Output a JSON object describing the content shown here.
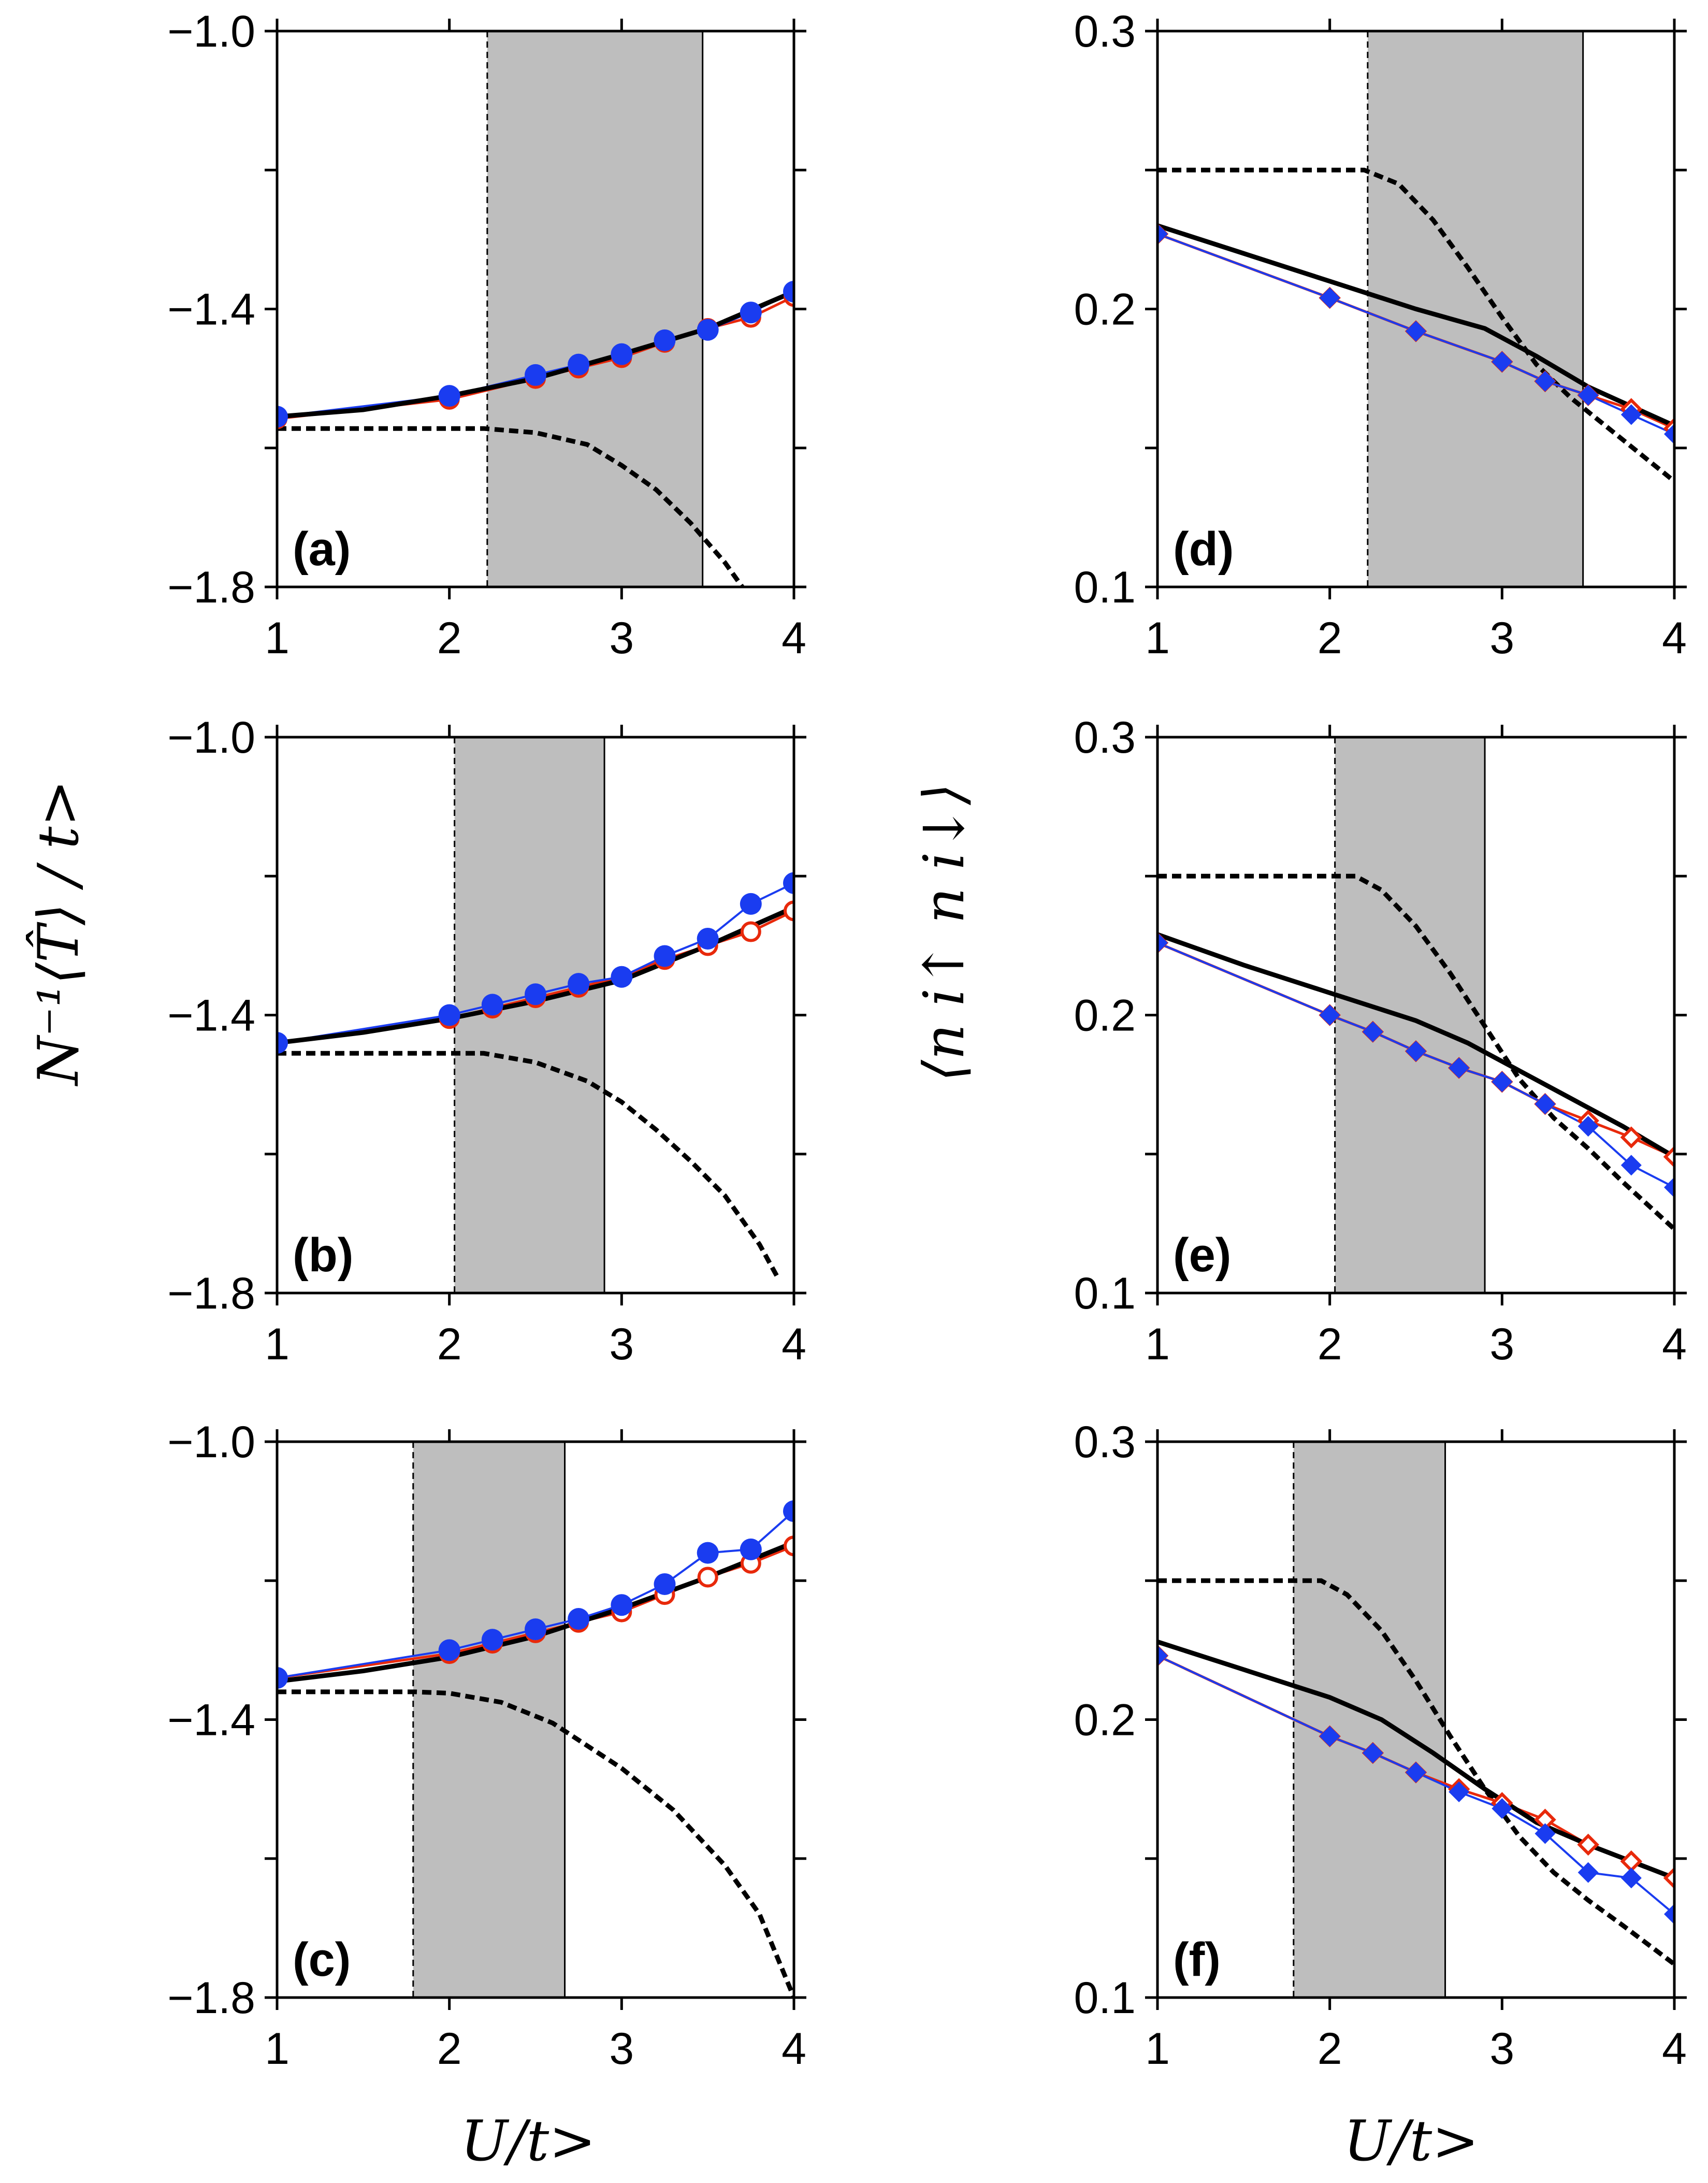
{
  "chart_data": {
    "type": "line",
    "figure": {
      "ylabel_left": "N⁻¹⟨T̂⟩ / t>",
      "ylabel_right": "⟨n i↑ n i↓⟩",
      "xlabel": "U/t>"
    },
    "colors": {
      "black_line": "#000000",
      "blue": "#1a3cf0",
      "red": "#e8290b",
      "shade": "#bebebe"
    },
    "panels": [
      {
        "id": "a",
        "label": "(a)",
        "xlim": [
          1,
          4
        ],
        "ylim": [
          -1.8,
          -1.0
        ],
        "xticks": [
          "1",
          "2",
          "3",
          "4"
        ],
        "yticks": [
          {
            "v": -1.0,
            "t": "−1.0"
          },
          {
            "v": -1.4,
            "t": "−1.4"
          },
          {
            "v": -1.8,
            "t": "−1.8"
          }
        ],
        "ytick_minor": [
          -1.2,
          -1.6
        ],
        "shade": [
          2.22,
          3.47
        ],
        "marker": "circle",
        "series": [
          {
            "name": "solid",
            "x": [
              1,
              1.5,
              2,
              2.5,
              3,
              3.5,
              4
            ],
            "y": [
              -1.555,
              -1.545,
              -1.525,
              -1.5,
              -1.465,
              -1.428,
              -1.375
            ]
          },
          {
            "name": "dashed",
            "x": [
              1,
              1.5,
              2,
              2.2,
              2.5,
              2.8,
              3,
              3.2,
              3.4,
              3.6,
              3.7
            ],
            "y": [
              -1.572,
              -1.572,
              -1.572,
              -1.572,
              -1.578,
              -1.595,
              -1.625,
              -1.66,
              -1.708,
              -1.765,
              -1.8
            ]
          },
          {
            "name": "red",
            "x": [
              1,
              2,
              2.5,
              2.75,
              3,
              3.25,
              3.5,
              3.75,
              4
            ],
            "y": [
              -1.558,
              -1.53,
              -1.5,
              -1.485,
              -1.47,
              -1.448,
              -1.428,
              -1.412,
              -1.382
            ]
          },
          {
            "name": "blue",
            "x": [
              1,
              2,
              2.5,
              2.75,
              3,
              3.25,
              3.5,
              3.75,
              4
            ],
            "y": [
              -1.555,
              -1.525,
              -1.495,
              -1.48,
              -1.465,
              -1.445,
              -1.43,
              -1.405,
              -1.375
            ]
          }
        ]
      },
      {
        "id": "b",
        "label": "(b)",
        "xlim": [
          1,
          4
        ],
        "ylim": [
          -1.8,
          -1.0
        ],
        "xticks": [
          "1",
          "2",
          "3",
          "4"
        ],
        "yticks": [
          {
            "v": -1.0,
            "t": "−1.0"
          },
          {
            "v": -1.4,
            "t": "−1.4"
          },
          {
            "v": -1.8,
            "t": "−1.8"
          }
        ],
        "ytick_minor": [
          -1.2,
          -1.6
        ],
        "shade": [
          2.03,
          2.9
        ],
        "marker": "circle",
        "series": [
          {
            "name": "solid",
            "x": [
              1,
              1.5,
              2,
              2.5,
              3,
              3.5,
              4
            ],
            "y": [
              -1.44,
              -1.425,
              -1.405,
              -1.38,
              -1.35,
              -1.3,
              -1.245
            ]
          },
          {
            "name": "dashed",
            "x": [
              1,
              1.5,
              2,
              2.2,
              2.5,
              2.8,
              3,
              3.2,
              3.4,
              3.6,
              3.8,
              3.9
            ],
            "y": [
              -1.455,
              -1.455,
              -1.455,
              -1.455,
              -1.468,
              -1.495,
              -1.525,
              -1.565,
              -1.61,
              -1.66,
              -1.73,
              -1.775
            ]
          },
          {
            "name": "red",
            "x": [
              1,
              2,
              2.25,
              2.5,
              2.75,
              3,
              3.25,
              3.5,
              3.75,
              4
            ],
            "y": [
              -1.44,
              -1.405,
              -1.39,
              -1.375,
              -1.36,
              -1.345,
              -1.32,
              -1.3,
              -1.28,
              -1.25
            ]
          },
          {
            "name": "blue",
            "x": [
              1,
              2,
              2.25,
              2.5,
              2.75,
              3,
              3.25,
              3.5,
              3.75,
              4
            ],
            "y": [
              -1.44,
              -1.4,
              -1.385,
              -1.37,
              -1.355,
              -1.345,
              -1.315,
              -1.29,
              -1.24,
              -1.21
            ]
          }
        ]
      },
      {
        "id": "c",
        "label": "(c)",
        "xlim": [
          1,
          4
        ],
        "ylim": [
          -1.8,
          -1.0
        ],
        "xticks": [
          "1",
          "2",
          "3",
          "4"
        ],
        "yticks": [
          {
            "v": -1.0,
            "t": "−1.0"
          },
          {
            "v": -1.4,
            "t": "−1.4"
          },
          {
            "v": -1.8,
            "t": "−1.8"
          }
        ],
        "ytick_minor": [
          -1.2,
          -1.6
        ],
        "shade": [
          1.79,
          2.67
        ],
        "marker": "circle",
        "series": [
          {
            "name": "solid",
            "x": [
              1,
              1.5,
              2,
              2.5,
              3,
              3.5,
              4
            ],
            "y": [
              -1.345,
              -1.33,
              -1.31,
              -1.28,
              -1.24,
              -1.195,
              -1.145
            ]
          },
          {
            "name": "dashed",
            "x": [
              1,
              1.5,
              1.8,
              2,
              2.3,
              2.6,
              3,
              3.3,
              3.6,
              3.8,
              4
            ],
            "y": [
              -1.36,
              -1.36,
              -1.36,
              -1.362,
              -1.375,
              -1.405,
              -1.47,
              -1.53,
              -1.61,
              -1.68,
              -1.8
            ]
          },
          {
            "name": "red",
            "x": [
              1,
              2,
              2.25,
              2.5,
              2.75,
              3,
              3.25,
              3.5,
              3.75,
              4
            ],
            "y": [
              -1.34,
              -1.305,
              -1.29,
              -1.275,
              -1.26,
              -1.245,
              -1.22,
              -1.195,
              -1.175,
              -1.15
            ]
          },
          {
            "name": "blue",
            "x": [
              1,
              2,
              2.25,
              2.5,
              2.75,
              3,
              3.25,
              3.5,
              3.75,
              4
            ],
            "y": [
              -1.34,
              -1.3,
              -1.285,
              -1.27,
              -1.255,
              -1.235,
              -1.205,
              -1.16,
              -1.155,
              -1.1
            ]
          }
        ]
      },
      {
        "id": "d",
        "label": "(d)",
        "xlim": [
          1,
          4
        ],
        "ylim": [
          0.1,
          0.3
        ],
        "xticks": [
          "1",
          "2",
          "3",
          "4"
        ],
        "yticks": [
          {
            "v": 0.3,
            "t": "0.3"
          },
          {
            "v": 0.2,
            "t": "0.2"
          },
          {
            "v": 0.1,
            "t": "0.1"
          }
        ],
        "ytick_minor": [
          0.25,
          0.15
        ],
        "shade": [
          2.22,
          3.47
        ],
        "marker": "diamond",
        "series": [
          {
            "name": "solid",
            "x": [
              1,
              1.5,
              2,
              2.5,
              2.9,
              3.2,
              3.5,
              3.75,
              4
            ],
            "y": [
              0.23,
              0.22,
              0.21,
              0.2,
              0.193,
              0.183,
              0.172,
              0.165,
              0.158
            ]
          },
          {
            "name": "dashed",
            "x": [
              1,
              1.5,
              2,
              2.2,
              2.4,
              2.6,
              2.8,
              3,
              3.2,
              3.4,
              3.6,
              3.8,
              4
            ],
            "y": [
              0.25,
              0.25,
              0.25,
              0.25,
              0.245,
              0.232,
              0.215,
              0.197,
              0.18,
              0.168,
              0.158,
              0.148,
              0.138
            ]
          },
          {
            "name": "red",
            "x": [
              1,
              2,
              2.5,
              3,
              3.25,
              3.5,
              3.75,
              4
            ],
            "y": [
              0.227,
              0.204,
              0.192,
              0.181,
              0.174,
              0.169,
              0.164,
              0.157
            ]
          },
          {
            "name": "blue",
            "x": [
              1,
              2,
              2.5,
              3,
              3.25,
              3.5,
              3.75,
              4
            ],
            "y": [
              0.227,
              0.204,
              0.192,
              0.181,
              0.174,
              0.169,
              0.162,
              0.155
            ]
          }
        ]
      },
      {
        "id": "e",
        "label": "(e)",
        "xlim": [
          1,
          4
        ],
        "ylim": [
          0.1,
          0.3
        ],
        "xticks": [
          "1",
          "2",
          "3",
          "4"
        ],
        "yticks": [
          {
            "v": 0.3,
            "t": "0.3"
          },
          {
            "v": 0.2,
            "t": "0.2"
          },
          {
            "v": 0.1,
            "t": "0.1"
          }
        ],
        "ytick_minor": [
          0.25,
          0.15
        ],
        "shade": [
          2.03,
          2.9
        ],
        "marker": "diamond",
        "series": [
          {
            "name": "solid",
            "x": [
              1,
              1.5,
              2,
              2.5,
              2.8,
              3.1,
              3.4,
              3.7,
              4
            ],
            "y": [
              0.229,
              0.218,
              0.208,
              0.198,
              0.19,
              0.18,
              0.17,
              0.16,
              0.149
            ]
          },
          {
            "name": "dashed",
            "x": [
              1,
              1.5,
              2,
              2.15,
              2.3,
              2.5,
              2.7,
              2.9,
              3.1,
              3.3,
              3.5,
              3.7,
              4
            ],
            "y": [
              0.25,
              0.25,
              0.25,
              0.25,
              0.245,
              0.232,
              0.215,
              0.196,
              0.177,
              0.163,
              0.152,
              0.14,
              0.123
            ]
          },
          {
            "name": "red",
            "x": [
              1,
              2,
              2.25,
              2.5,
              2.75,
              3,
              3.25,
              3.5,
              3.75,
              4
            ],
            "y": [
              0.226,
              0.2,
              0.194,
              0.187,
              0.181,
              0.176,
              0.168,
              0.162,
              0.156,
              0.149
            ]
          },
          {
            "name": "blue",
            "x": [
              1,
              2,
              2.25,
              2.5,
              2.75,
              3,
              3.25,
              3.5,
              3.75,
              4
            ],
            "y": [
              0.226,
              0.2,
              0.194,
              0.187,
              0.181,
              0.176,
              0.168,
              0.16,
              0.146,
              0.138
            ]
          }
        ]
      },
      {
        "id": "f",
        "label": "(f)",
        "xlim": [
          1,
          4
        ],
        "ylim": [
          0.1,
          0.3
        ],
        "xticks": [
          "1",
          "2",
          "3",
          "4"
        ],
        "yticks": [
          {
            "v": 0.3,
            "t": "0.3"
          },
          {
            "v": 0.2,
            "t": "0.2"
          },
          {
            "v": 0.1,
            "t": "0.1"
          }
        ],
        "ytick_minor": [
          0.25,
          0.15
        ],
        "shade": [
          1.79,
          2.67
        ],
        "marker": "diamond",
        "series": [
          {
            "name": "solid",
            "x": [
              1,
              1.5,
              2,
              2.3,
              2.6,
              2.9,
              3.2,
              3.5,
              3.75,
              4
            ],
            "y": [
              0.228,
              0.218,
              0.208,
              0.2,
              0.188,
              0.175,
              0.163,
              0.155,
              0.149,
              0.143
            ]
          },
          {
            "name": "dashed",
            "x": [
              1,
              1.5,
              1.8,
              1.95,
              2.1,
              2.3,
              2.5,
              2.7,
              2.9,
              3.1,
              3.3,
              3.5,
              3.7,
              4
            ],
            "y": [
              0.25,
              0.25,
              0.25,
              0.25,
              0.245,
              0.232,
              0.214,
              0.194,
              0.175,
              0.158,
              0.145,
              0.135,
              0.126,
              0.112
            ]
          },
          {
            "name": "red",
            "x": [
              1,
              2,
              2.25,
              2.5,
              2.75,
              3,
              3.25,
              3.5,
              3.75,
              4
            ],
            "y": [
              0.223,
              0.194,
              0.188,
              0.181,
              0.175,
              0.17,
              0.164,
              0.155,
              0.149,
              0.143
            ]
          },
          {
            "name": "blue",
            "x": [
              1,
              2,
              2.25,
              2.5,
              2.75,
              3,
              3.25,
              3.5,
              3.75,
              4
            ],
            "y": [
              0.223,
              0.194,
              0.188,
              0.181,
              0.174,
              0.168,
              0.159,
              0.145,
              0.143,
              0.13
            ]
          }
        ]
      }
    ]
  }
}
